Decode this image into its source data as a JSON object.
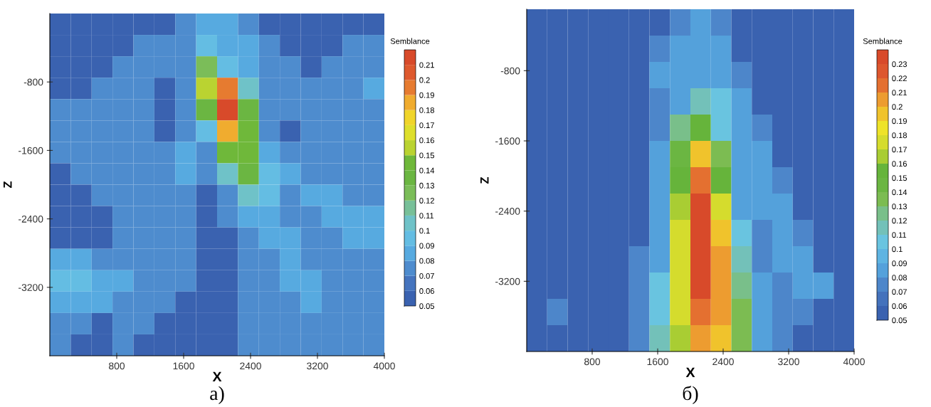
{
  "chart_data": [
    {
      "type": "heatmap",
      "xlabel": "X",
      "ylabel": "Z",
      "clabel": "Semblance",
      "annotations": [
        "а)"
      ],
      "x": [
        125,
        375,
        625,
        875,
        1125,
        1375,
        1625,
        1875,
        2125,
        2375,
        2625,
        2875,
        3125,
        3375,
        3625,
        3875
      ],
      "y": [
        -125,
        -375,
        -625,
        -875,
        -1125,
        -1375,
        -1625,
        -1875,
        -2125,
        -2375,
        -2625,
        -2875,
        -3125,
        -3375,
        -3625,
        -3875
      ],
      "xlim": [
        0,
        4000
      ],
      "ylim": [
        -4000,
        0
      ],
      "xticks": [
        800,
        1600,
        2400,
        3200,
        4000
      ],
      "yticks": [
        -800,
        -1600,
        -2400,
        -3200
      ],
      "clim": [
        0.05,
        0.22
      ],
      "cticks": [
        0.05,
        0.06,
        0.07,
        0.08,
        0.09,
        0.1,
        0.11,
        0.12,
        0.13,
        0.14,
        0.15,
        0.16,
        0.17,
        0.18,
        0.19,
        0.2,
        0.21
      ],
      "grid": false,
      "cells": [
        [
          0.06,
          0.06,
          0.06,
          0.06,
          0.06,
          0.06,
          0.07,
          0.08,
          0.08,
          0.07,
          0.06,
          0.06,
          0.06,
          0.06,
          0.06,
          0.06
        ],
        [
          0.06,
          0.06,
          0.06,
          0.06,
          0.07,
          0.07,
          0.07,
          0.09,
          0.08,
          0.08,
          0.07,
          0.06,
          0.06,
          0.06,
          0.07,
          0.07
        ],
        [
          0.06,
          0.06,
          0.06,
          0.07,
          0.07,
          0.07,
          0.07,
          0.12,
          0.09,
          0.08,
          0.07,
          0.07,
          0.06,
          0.07,
          0.07,
          0.07
        ],
        [
          0.06,
          0.06,
          0.07,
          0.07,
          0.07,
          0.06,
          0.07,
          0.15,
          0.19,
          0.1,
          0.07,
          0.07,
          0.07,
          0.07,
          0.07,
          0.08
        ],
        [
          0.07,
          0.07,
          0.07,
          0.07,
          0.07,
          0.06,
          0.07,
          0.13,
          0.21,
          0.13,
          0.07,
          0.07,
          0.07,
          0.07,
          0.07,
          0.07
        ],
        [
          0.07,
          0.07,
          0.07,
          0.07,
          0.07,
          0.06,
          0.07,
          0.09,
          0.18,
          0.14,
          0.07,
          0.06,
          0.07,
          0.07,
          0.07,
          0.07
        ],
        [
          0.07,
          0.07,
          0.07,
          0.07,
          0.07,
          0.07,
          0.08,
          0.07,
          0.14,
          0.14,
          0.08,
          0.07,
          0.07,
          0.07,
          0.07,
          0.07
        ],
        [
          0.06,
          0.07,
          0.07,
          0.07,
          0.07,
          0.07,
          0.08,
          0.07,
          0.1,
          0.13,
          0.09,
          0.08,
          0.07,
          0.07,
          0.07,
          0.07
        ],
        [
          0.06,
          0.06,
          0.07,
          0.07,
          0.07,
          0.07,
          0.07,
          0.06,
          0.07,
          0.1,
          0.09,
          0.07,
          0.08,
          0.08,
          0.07,
          0.07
        ],
        [
          0.06,
          0.06,
          0.06,
          0.07,
          0.07,
          0.07,
          0.07,
          0.06,
          0.07,
          0.08,
          0.08,
          0.07,
          0.07,
          0.08,
          0.08,
          0.08
        ],
        [
          0.06,
          0.06,
          0.06,
          0.07,
          0.07,
          0.07,
          0.07,
          0.06,
          0.06,
          0.07,
          0.08,
          0.08,
          0.07,
          0.07,
          0.08,
          0.08
        ],
        [
          0.08,
          0.08,
          0.07,
          0.07,
          0.07,
          0.07,
          0.07,
          0.06,
          0.06,
          0.07,
          0.07,
          0.08,
          0.07,
          0.07,
          0.07,
          0.07
        ],
        [
          0.09,
          0.09,
          0.08,
          0.08,
          0.07,
          0.07,
          0.07,
          0.06,
          0.06,
          0.07,
          0.07,
          0.08,
          0.08,
          0.07,
          0.07,
          0.07
        ],
        [
          0.08,
          0.08,
          0.08,
          0.07,
          0.07,
          0.07,
          0.06,
          0.06,
          0.06,
          0.07,
          0.07,
          0.07,
          0.08,
          0.07,
          0.07,
          0.07
        ],
        [
          0.07,
          0.07,
          0.06,
          0.07,
          0.07,
          0.06,
          0.06,
          0.06,
          0.06,
          0.07,
          0.07,
          0.07,
          0.07,
          0.07,
          0.07,
          0.07
        ],
        [
          0.07,
          0.06,
          0.06,
          0.07,
          0.06,
          0.06,
          0.06,
          0.06,
          0.06,
          0.07,
          0.07,
          0.07,
          0.07,
          0.07,
          0.07,
          0.07
        ]
      ]
    },
    {
      "type": "heatmap",
      "xlabel": "X",
      "ylabel": "Z",
      "clabel": "Semblance",
      "annotations": [
        "б)"
      ],
      "x": [
        125,
        375,
        625,
        875,
        1125,
        1375,
        1625,
        1875,
        2125,
        2375,
        2625,
        2875,
        3125,
        3375,
        3625,
        3875
      ],
      "y": [
        -250,
        -550,
        -850,
        -1150,
        -1450,
        -1750,
        -2050,
        -2350,
        -2650,
        -2950,
        -3250,
        -3550,
        -3850
      ],
      "xlim": [
        0,
        4000
      ],
      "ylim": [
        -4000,
        -100
      ],
      "xticks": [
        800,
        1600,
        2400,
        3200,
        4000
      ],
      "yticks": [
        -800,
        -1600,
        -2400,
        -3200
      ],
      "clim": [
        0.05,
        0.24
      ],
      "cticks": [
        0.05,
        0.06,
        0.07,
        0.08,
        0.09,
        0.1,
        0.11,
        0.12,
        0.13,
        0.14,
        0.15,
        0.16,
        0.17,
        0.18,
        0.19,
        0.2,
        0.21,
        0.22,
        0.23
      ],
      "grid": false,
      "cells": [
        [
          0.06,
          0.06,
          0.06,
          0.06,
          0.06,
          0.06,
          0.06,
          0.07,
          0.08,
          0.07,
          0.06,
          0.06,
          0.06,
          0.06,
          0.06,
          0.06
        ],
        [
          0.06,
          0.06,
          0.06,
          0.06,
          0.06,
          0.06,
          0.07,
          0.08,
          0.08,
          0.08,
          0.06,
          0.06,
          0.06,
          0.06,
          0.06,
          0.06
        ],
        [
          0.06,
          0.06,
          0.06,
          0.06,
          0.06,
          0.06,
          0.08,
          0.09,
          0.08,
          0.09,
          0.07,
          0.06,
          0.06,
          0.06,
          0.06,
          0.06
        ],
        [
          0.06,
          0.06,
          0.06,
          0.06,
          0.06,
          0.06,
          0.07,
          0.09,
          0.11,
          0.1,
          0.08,
          0.06,
          0.06,
          0.06,
          0.06,
          0.06
        ],
        [
          0.06,
          0.06,
          0.06,
          0.06,
          0.06,
          0.06,
          0.07,
          0.12,
          0.15,
          0.1,
          0.09,
          0.07,
          0.06,
          0.06,
          0.06,
          0.06
        ],
        [
          0.06,
          0.06,
          0.06,
          0.06,
          0.06,
          0.06,
          0.08,
          0.14,
          0.19,
          0.13,
          0.09,
          0.08,
          0.06,
          0.06,
          0.06,
          0.06
        ],
        [
          0.06,
          0.06,
          0.06,
          0.06,
          0.06,
          0.06,
          0.08,
          0.15,
          0.22,
          0.15,
          0.08,
          0.09,
          0.07,
          0.06,
          0.06,
          0.06
        ],
        [
          0.06,
          0.06,
          0.06,
          0.06,
          0.06,
          0.06,
          0.09,
          0.16,
          0.23,
          0.17,
          0.09,
          0.08,
          0.08,
          0.06,
          0.06,
          0.06
        ],
        [
          0.06,
          0.06,
          0.06,
          0.06,
          0.06,
          0.06,
          0.09,
          0.17,
          0.23,
          0.19,
          0.1,
          0.07,
          0.08,
          0.07,
          0.06,
          0.06
        ],
        [
          0.06,
          0.06,
          0.06,
          0.06,
          0.06,
          0.07,
          0.09,
          0.17,
          0.23,
          0.2,
          0.11,
          0.07,
          0.08,
          0.08,
          0.06,
          0.06
        ],
        [
          0.06,
          0.06,
          0.06,
          0.06,
          0.06,
          0.07,
          0.1,
          0.17,
          0.23,
          0.2,
          0.12,
          0.08,
          0.07,
          0.08,
          0.08,
          0.06
        ],
        [
          0.06,
          0.07,
          0.06,
          0.06,
          0.06,
          0.07,
          0.1,
          0.17,
          0.22,
          0.2,
          0.13,
          0.08,
          0.07,
          0.07,
          0.06,
          0.06
        ],
        [
          0.06,
          0.06,
          0.06,
          0.06,
          0.06,
          0.07,
          0.11,
          0.16,
          0.2,
          0.19,
          0.13,
          0.09,
          0.07,
          0.06,
          0.06,
          0.06
        ]
      ]
    }
  ]
}
